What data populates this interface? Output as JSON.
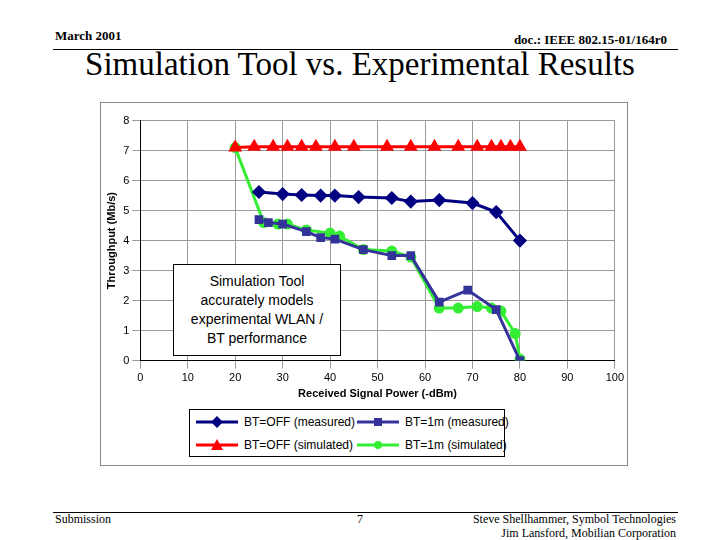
{
  "header": {
    "left": "March 2001",
    "right": "doc.: IEEE 802.15-01/164r0"
  },
  "title": "Simulation Tool vs. Experimental Results",
  "footer": {
    "left": "Submission",
    "page": "7",
    "right": [
      "Steve Shellhammer, Symbol Technologies",
      "Jim Lansford, Mobilian Corporation"
    ]
  },
  "chart_data": {
    "type": "line",
    "x_label": "Received Signal Power (-dBm)",
    "y_label": "Throughput (Mb/s)",
    "annotation": "Simulation Tool accurately models experimental WLAN / BT performance",
    "xlim": [
      0,
      100
    ],
    "xticks": [
      0,
      10,
      20,
      30,
      40,
      50,
      60,
      70,
      80,
      90,
      100
    ],
    "ylim": [
      0,
      8
    ],
    "yticks": [
      0,
      1,
      2,
      3,
      4,
      5,
      6,
      7,
      8
    ],
    "grid": true,
    "legend": "bottom",
    "series": [
      {
        "name": "BT=OFF (measured)",
        "color": "#000080",
        "marker": "diamond",
        "x": [
          25,
          30,
          34,
          38,
          41,
          46,
          53,
          57,
          63,
          70,
          75,
          80
        ],
        "values": [
          5.62,
          5.55,
          5.52,
          5.5,
          5.5,
          5.45,
          5.42,
          5.3,
          5.35,
          5.25,
          4.95,
          4.0
        ]
      },
      {
        "name": "BT=OFF (simulated)",
        "color": "#ff0000",
        "marker": "triangle",
        "x": [
          20,
          24,
          28,
          31,
          34,
          37,
          41,
          45,
          52,
          57,
          62,
          67,
          71,
          74,
          76,
          78,
          80
        ],
        "values": [
          7.1,
          7.13,
          7.13,
          7.13,
          7.13,
          7.13,
          7.13,
          7.13,
          7.13,
          7.13,
          7.13,
          7.13,
          7.13,
          7.13,
          7.13,
          7.13,
          7.13
        ]
      },
      {
        "name": "BT=1m (measured)",
        "color": "#333399",
        "marker": "square",
        "x": [
          25,
          27,
          30,
          35,
          38,
          41,
          47,
          53,
          57,
          63,
          69,
          75,
          80
        ],
        "values": [
          4.7,
          4.6,
          4.55,
          4.3,
          4.1,
          4.05,
          3.7,
          3.5,
          3.5,
          1.95,
          2.35,
          1.7,
          0.0
        ]
      },
      {
        "name": "BT=1m (simulated)",
        "color": "#33ee33",
        "marker": "circle",
        "x": [
          20,
          26,
          29,
          31,
          35,
          40,
          42,
          47,
          53,
          57,
          63,
          67,
          71,
          74,
          76,
          79,
          80
        ],
        "values": [
          7.1,
          4.6,
          4.55,
          4.55,
          4.35,
          4.25,
          4.15,
          3.7,
          3.65,
          3.45,
          1.75,
          1.75,
          1.8,
          1.75,
          1.65,
          0.9,
          0.05
        ]
      }
    ]
  }
}
